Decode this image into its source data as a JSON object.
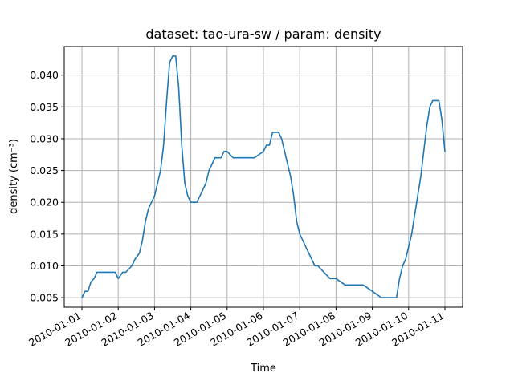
{
  "chart_data": {
    "type": "line",
    "title": "dataset: tao-ura-sw / param: density",
    "xlabel": "Time",
    "ylabel": "density (cm⁻³)",
    "xlim": [
      "2010-01-01",
      "2010-01-11"
    ],
    "ylim": [
      0.0035,
      0.0445
    ],
    "grid": true,
    "x_ticks": [
      "2010-01-01",
      "2010-01-02",
      "2010-01-03",
      "2010-01-04",
      "2010-01-05",
      "2010-01-06",
      "2010-01-07",
      "2010-01-08",
      "2010-01-09",
      "2010-01-10",
      "2010-01-11"
    ],
    "y_ticks": [
      "0.005",
      "0.010",
      "0.015",
      "0.020",
      "0.025",
      "0.030",
      "0.035",
      "0.040"
    ],
    "series": [
      {
        "color": "#1f77b4",
        "x": [
          "2010-01-01 00:00",
          "2010-01-01 02:00",
          "2010-01-01 04:00",
          "2010-01-01 06:00",
          "2010-01-01 08:00",
          "2010-01-01 10:00",
          "2010-01-01 16:00",
          "2010-01-01 22:00",
          "2010-01-02 00:00",
          "2010-01-02 03:00",
          "2010-01-02 05:00",
          "2010-01-02 09:00",
          "2010-01-02 11:00",
          "2010-01-02 14:00",
          "2010-01-02 16:00",
          "2010-01-02 18:00",
          "2010-01-02 20:00",
          "2010-01-02 22:00",
          "2010-01-03 00:00",
          "2010-01-03 02:00",
          "2010-01-03 04:00",
          "2010-01-03 06:00",
          "2010-01-03 08:00",
          "2010-01-03 10:00",
          "2010-01-03 12:00",
          "2010-01-03 14:00",
          "2010-01-03 16:00",
          "2010-01-03 18:00",
          "2010-01-03 20:00",
          "2010-01-03 22:00",
          "2010-01-04 00:00",
          "2010-01-04 02:00",
          "2010-01-04 04:00",
          "2010-01-04 06:00",
          "2010-01-04 08:00",
          "2010-01-04 10:00",
          "2010-01-04 12:00",
          "2010-01-04 14:00",
          "2010-01-04 16:00",
          "2010-01-04 18:00",
          "2010-01-04 20:00",
          "2010-01-04 22:00",
          "2010-01-05 00:00",
          "2010-01-05 04:00",
          "2010-01-05 06:00",
          "2010-01-05 12:00",
          "2010-01-05 18:00",
          "2010-01-06 00:00",
          "2010-01-06 02:00",
          "2010-01-06 04:00",
          "2010-01-06 06:00",
          "2010-01-06 08:00",
          "2010-01-06 10:00",
          "2010-01-06 12:00",
          "2010-01-06 14:00",
          "2010-01-06 16:00",
          "2010-01-06 18:00",
          "2010-01-06 20:00",
          "2010-01-06 22:00",
          "2010-01-07 00:00",
          "2010-01-07 02:00",
          "2010-01-07 04:00",
          "2010-01-07 06:00",
          "2010-01-07 08:00",
          "2010-01-07 10:00",
          "2010-01-07 12:00",
          "2010-01-07 16:00",
          "2010-01-07 20:00",
          "2010-01-08 00:00",
          "2010-01-08 06:00",
          "2010-01-08 12:00",
          "2010-01-08 18:00",
          "2010-01-09 00:00",
          "2010-01-09 06:00",
          "2010-01-09 12:00",
          "2010-01-09 14:00",
          "2010-01-09 16:00",
          "2010-01-09 18:00",
          "2010-01-09 20:00",
          "2010-01-09 22:00",
          "2010-01-10 00:00",
          "2010-01-10 02:00",
          "2010-01-10 04:00",
          "2010-01-10 06:00",
          "2010-01-10 08:00",
          "2010-01-10 10:00",
          "2010-01-10 12:00",
          "2010-01-10 14:00",
          "2010-01-10 16:00",
          "2010-01-10 20:00",
          "2010-01-10 22:00",
          "2010-01-11 00:00"
        ],
        "values": [
          0.005,
          0.006,
          0.006,
          0.0075,
          0.008,
          0.009,
          0.009,
          0.009,
          0.008,
          0.009,
          0.009,
          0.01,
          0.011,
          0.012,
          0.014,
          0.017,
          0.019,
          0.02,
          0.021,
          0.023,
          0.025,
          0.029,
          0.036,
          0.042,
          0.043,
          0.043,
          0.038,
          0.029,
          0.023,
          0.021,
          0.02,
          0.02,
          0.02,
          0.021,
          0.022,
          0.023,
          0.025,
          0.026,
          0.027,
          0.027,
          0.027,
          0.028,
          0.028,
          0.027,
          0.027,
          0.027,
          0.027,
          0.028,
          0.029,
          0.029,
          0.031,
          0.031,
          0.031,
          0.03,
          0.028,
          0.026,
          0.024,
          0.021,
          0.017,
          0.015,
          0.014,
          0.013,
          0.012,
          0.011,
          0.01,
          0.01,
          0.009,
          0.008,
          0.008,
          0.007,
          0.007,
          0.007,
          0.006,
          0.005,
          0.005,
          0.005,
          0.005,
          0.008,
          0.01,
          0.011,
          0.013,
          0.015,
          0.018,
          0.021,
          0.024,
          0.028,
          0.032,
          0.035,
          0.036,
          0.036,
          0.033,
          0.028
        ]
      }
    ]
  }
}
